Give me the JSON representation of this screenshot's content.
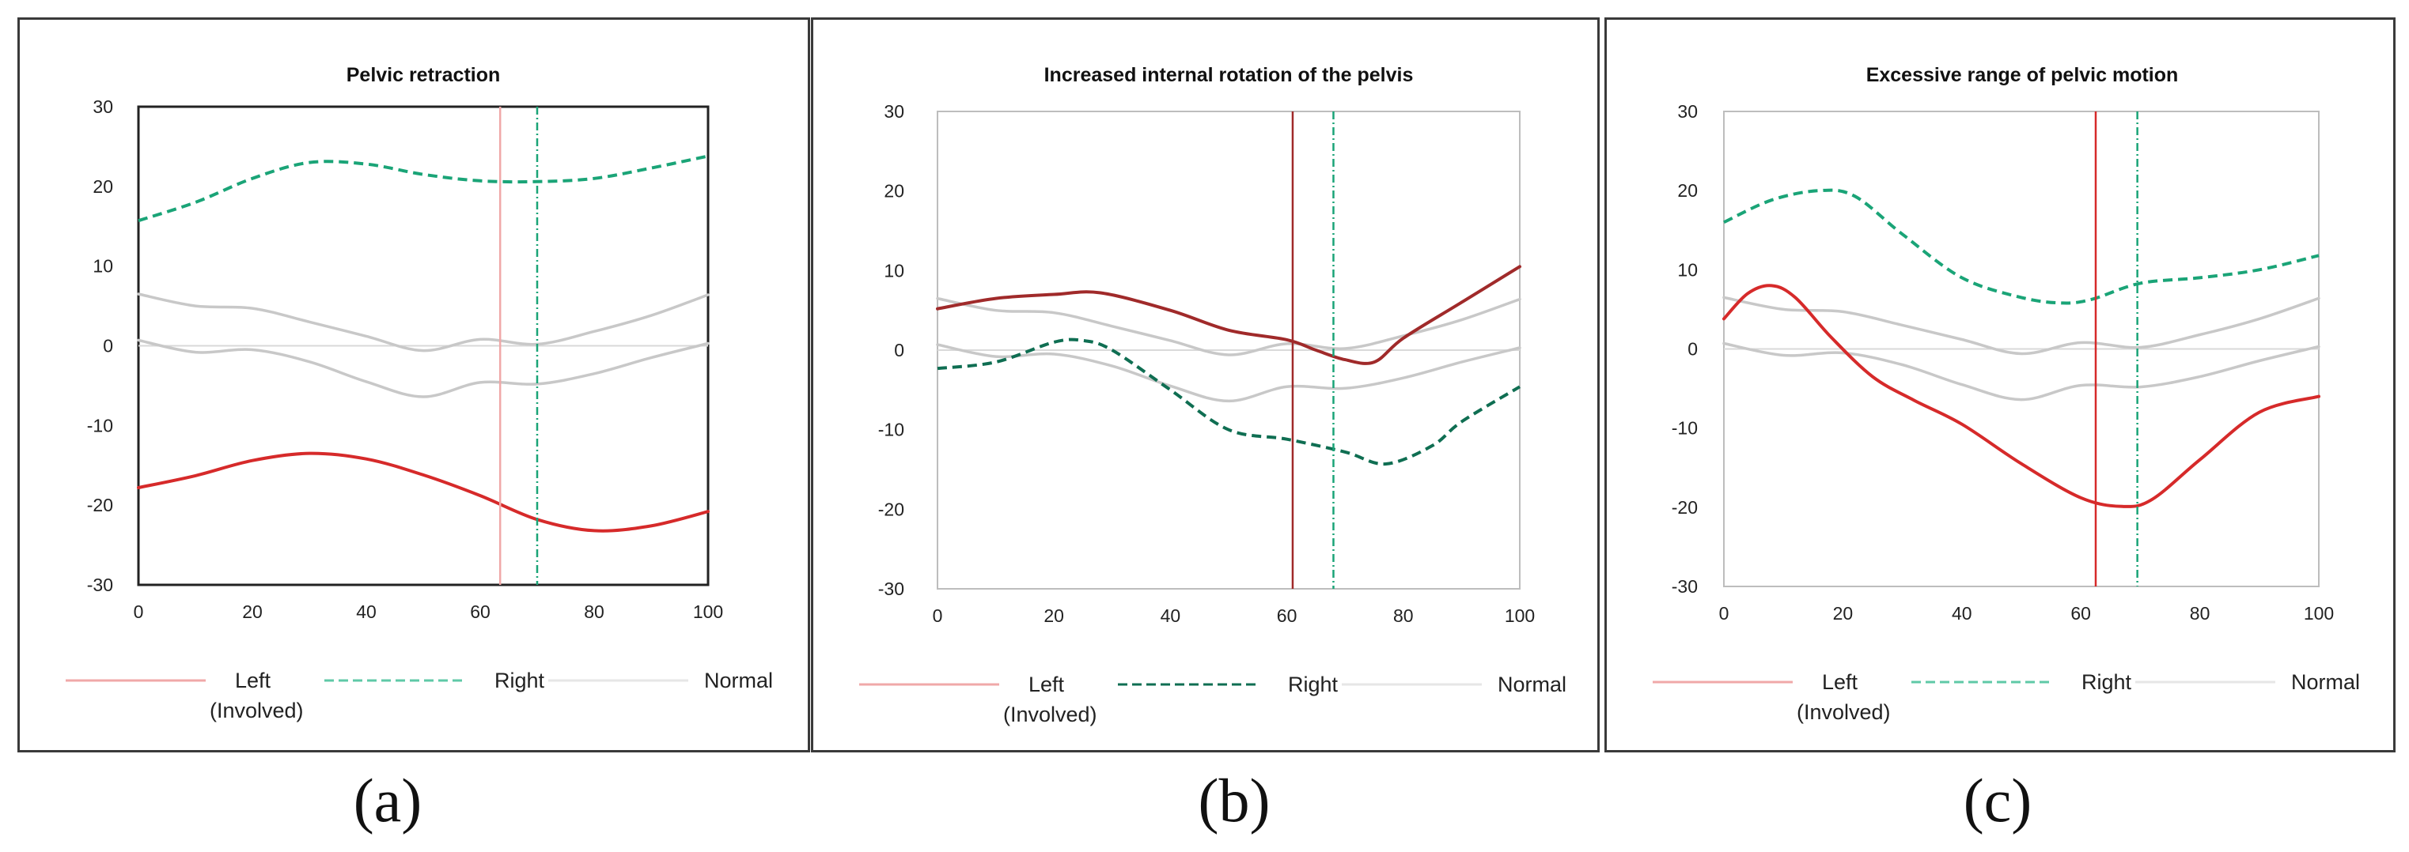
{
  "colors": {
    "left": "#d62a2a",
    "left_dark": "#a02a2a",
    "left_legend": "#f0a8a8",
    "right": "#1aa477",
    "right_dark": "#0f6e52",
    "right_legend": "#5fc9a7",
    "normal": "#c8c8c8",
    "normal_legend": "#e6e6e6",
    "zero_line": "#d9d9d9"
  },
  "legend": {
    "left": "Left",
    "involved": "(Involved)",
    "right": "Right",
    "normal": "Normal"
  },
  "chart_data": [
    {
      "type": "line",
      "caption": "(a)",
      "title": "Pelvic retraction",
      "xlabel": "",
      "ylabel": "",
      "xlim": [
        0,
        100
      ],
      "ylim": [
        -30,
        30
      ],
      "xticks": [
        "0",
        "20",
        "40",
        "60",
        "80",
        "100"
      ],
      "yticks": [
        "30",
        "20",
        "10",
        "0",
        "-10",
        "-20",
        "-30"
      ],
      "frame": "black",
      "series": [
        {
          "name": "Left (Involved)",
          "style": "solid",
          "color_key": "left",
          "x": [
            0,
            10,
            20,
            30,
            40,
            50,
            60,
            70,
            80,
            90,
            100
          ],
          "y": [
            -17.8,
            -16.3,
            -14.4,
            -13.5,
            -14.2,
            -16.2,
            -18.8,
            -21.8,
            -23.2,
            -22.6,
            -20.8
          ]
        },
        {
          "name": "Right",
          "style": "dashed",
          "color_key": "right",
          "x": [
            0,
            10,
            20,
            30,
            40,
            50,
            60,
            70,
            80,
            90,
            100
          ],
          "y": [
            15.7,
            18.0,
            21.0,
            23.0,
            22.8,
            21.5,
            20.7,
            20.6,
            21.0,
            22.3,
            23.8
          ]
        },
        {
          "name": "Normal upper",
          "style": "solid",
          "color_key": "normal",
          "x": [
            0,
            10,
            20,
            30,
            40,
            50,
            60,
            70,
            80,
            90,
            100
          ],
          "y": [
            6.5,
            5.0,
            4.7,
            3.0,
            1.2,
            -0.6,
            0.8,
            0.2,
            1.8,
            3.8,
            6.4
          ]
        },
        {
          "name": "Normal lower",
          "style": "solid",
          "color_key": "normal",
          "x": [
            0,
            10,
            20,
            30,
            40,
            50,
            60,
            70,
            80,
            90,
            100
          ],
          "y": [
            0.7,
            -0.8,
            -0.5,
            -2.0,
            -4.5,
            -6.4,
            -4.6,
            -4.8,
            -3.5,
            -1.5,
            0.3
          ]
        }
      ],
      "vlines": [
        {
          "x": 63.5,
          "color_key": "left_legend",
          "style": "solid"
        },
        {
          "x": 70.0,
          "color_key": "right",
          "style": "dashdot"
        }
      ]
    },
    {
      "type": "line",
      "caption": "(b)",
      "title": "Increased internal rotation of the pelvis",
      "xlabel": "",
      "ylabel": "",
      "xlim": [
        0,
        100
      ],
      "ylim": [
        -30,
        30
      ],
      "xticks": [
        "0",
        "20",
        "40",
        "60",
        "80",
        "100"
      ],
      "yticks": [
        "30",
        "20",
        "10",
        "0",
        "-10",
        "-20",
        "-30"
      ],
      "frame": "grey",
      "series": [
        {
          "name": "Left (Involved)",
          "style": "solid",
          "color_key": "left_dark",
          "x": [
            0,
            10,
            20,
            28,
            40,
            50,
            60,
            65,
            70,
            75,
            80,
            90,
            100
          ],
          "y": [
            5.2,
            6.5,
            7.0,
            7.2,
            5.0,
            2.5,
            1.3,
            0.0,
            -1.2,
            -1.5,
            1.5,
            6.0,
            10.5
          ]
        },
        {
          "name": "Right",
          "style": "dashed",
          "color_key": "right_dark",
          "x": [
            0,
            10,
            20,
            25,
            30,
            40,
            50,
            60,
            70,
            77,
            85,
            90,
            100
          ],
          "y": [
            -2.3,
            -1.5,
            1.0,
            1.2,
            0.0,
            -5.0,
            -10.0,
            -11.2,
            -12.8,
            -14.3,
            -12.0,
            -9.0,
            -4.6
          ]
        },
        {
          "name": "Normal upper",
          "style": "solid",
          "color_key": "normal",
          "x": [
            0,
            10,
            20,
            30,
            40,
            50,
            60,
            70,
            80,
            90,
            100
          ],
          "y": [
            6.5,
            5.0,
            4.7,
            3.0,
            1.2,
            -0.6,
            0.8,
            0.2,
            1.8,
            3.8,
            6.4
          ]
        },
        {
          "name": "Normal lower",
          "style": "solid",
          "color_key": "normal",
          "x": [
            0,
            10,
            20,
            30,
            40,
            50,
            60,
            70,
            80,
            90,
            100
          ],
          "y": [
            0.7,
            -0.8,
            -0.5,
            -2.0,
            -4.5,
            -6.4,
            -4.6,
            -4.8,
            -3.5,
            -1.5,
            0.3
          ]
        }
      ],
      "vlines": [
        {
          "x": 61.0,
          "color_key": "left_dark",
          "style": "solid"
        },
        {
          "x": 68.0,
          "color_key": "right",
          "style": "dashdot"
        }
      ]
    },
    {
      "type": "line",
      "caption": "(c)",
      "title": "Excessive range of pelvic motion",
      "xlabel": "",
      "ylabel": "",
      "xlim": [
        0,
        100
      ],
      "ylim": [
        -30,
        30
      ],
      "xticks": [
        "0",
        "20",
        "40",
        "60",
        "80",
        "100"
      ],
      "yticks": [
        "30",
        "20",
        "10",
        "0",
        "-10",
        "-20",
        "-30"
      ],
      "frame": "grey",
      "series": [
        {
          "name": "Left (Involved)",
          "style": "solid",
          "color_key": "left",
          "x": [
            0,
            4,
            8,
            12,
            18,
            25,
            32,
            40,
            50,
            60,
            67,
            72,
            80,
            90,
            100
          ],
          "y": [
            3.8,
            7.0,
            8.0,
            6.5,
            1.5,
            -3.5,
            -6.5,
            -9.5,
            -14.5,
            -18.8,
            -19.9,
            -19.0,
            -14.0,
            -8.0,
            -6.0
          ]
        },
        {
          "name": "Right",
          "style": "dashed",
          "color_key": "right",
          "x": [
            0,
            8,
            16,
            22,
            30,
            40,
            50,
            57,
            62,
            70,
            80,
            90,
            100
          ],
          "y": [
            16.0,
            18.8,
            20.0,
            19.3,
            14.5,
            9.0,
            6.5,
            5.8,
            6.3,
            8.3,
            9.0,
            10.0,
            11.8
          ]
        },
        {
          "name": "Normal upper",
          "style": "solid",
          "color_key": "normal",
          "x": [
            0,
            10,
            20,
            30,
            40,
            50,
            60,
            70,
            80,
            90,
            100
          ],
          "y": [
            6.5,
            5.0,
            4.7,
            3.0,
            1.2,
            -0.6,
            0.8,
            0.2,
            1.8,
            3.8,
            6.4
          ]
        },
        {
          "name": "Normal lower",
          "style": "solid",
          "color_key": "normal",
          "x": [
            0,
            10,
            20,
            30,
            40,
            50,
            60,
            70,
            80,
            90,
            100
          ],
          "y": [
            0.7,
            -0.8,
            -0.5,
            -2.0,
            -4.5,
            -6.4,
            -4.6,
            -4.8,
            -3.5,
            -1.5,
            0.3
          ]
        }
      ],
      "vlines": [
        {
          "x": 62.5,
          "color_key": "left",
          "style": "solid"
        },
        {
          "x": 69.5,
          "color_key": "right",
          "style": "dashdot"
        }
      ]
    }
  ]
}
